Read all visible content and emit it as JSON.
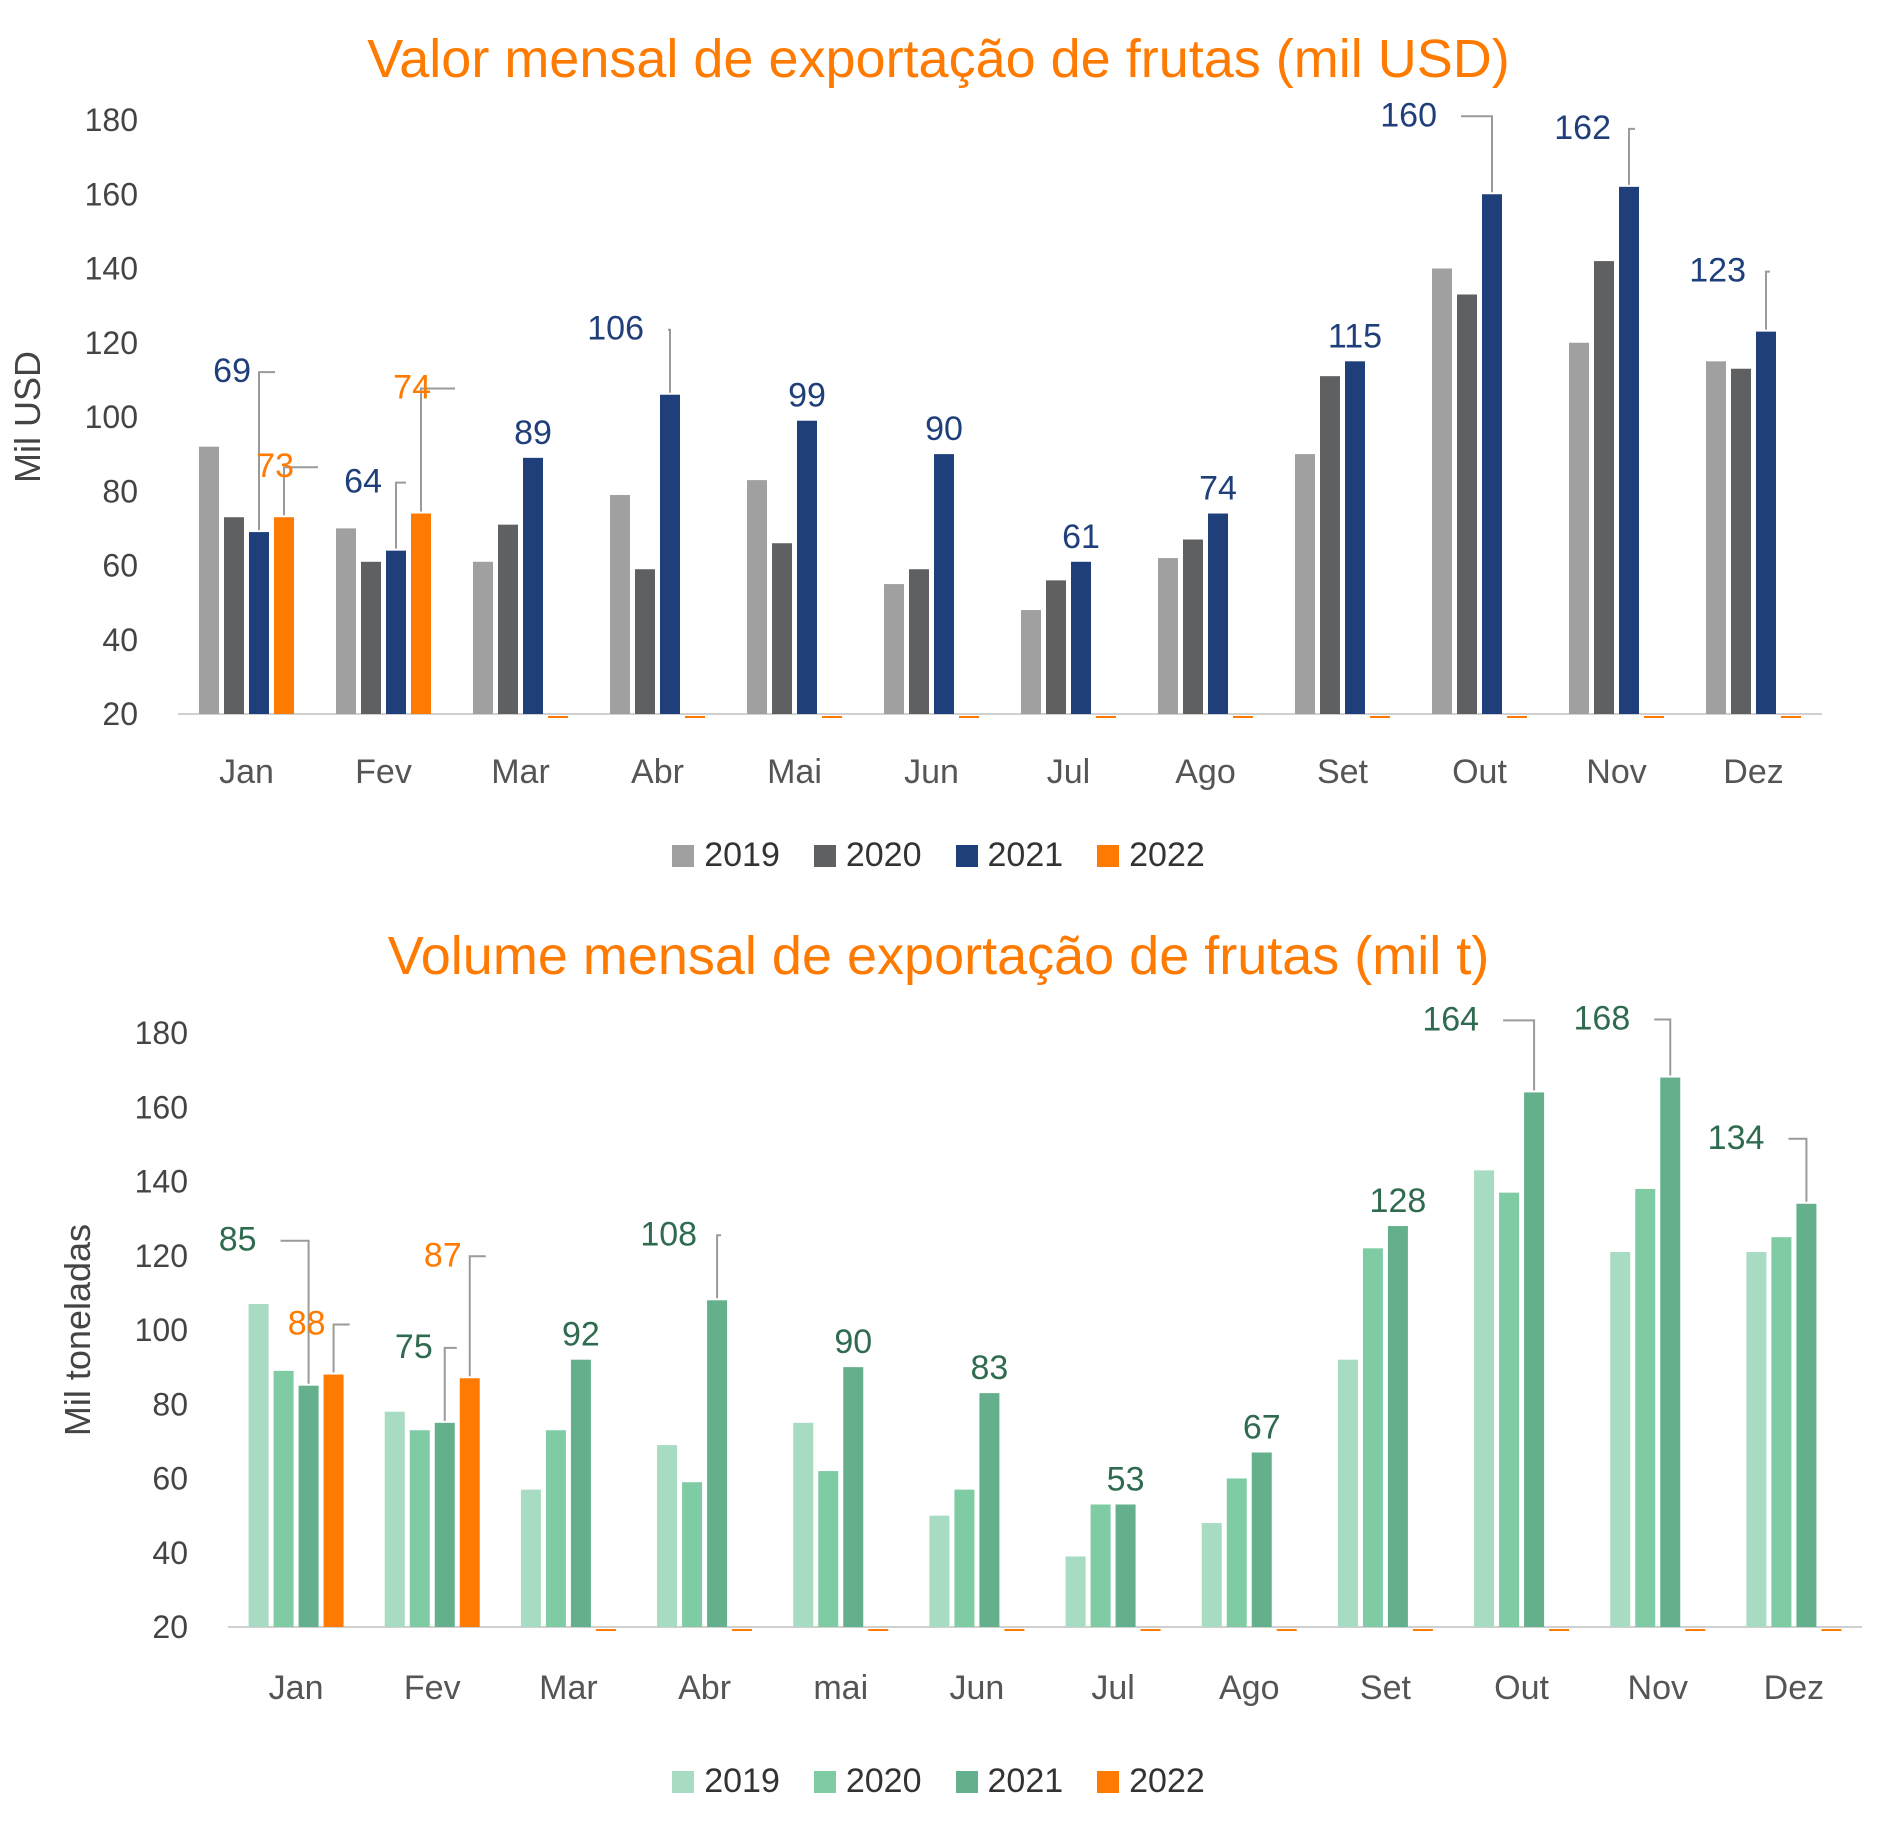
{
  "chart_data": [
    {
      "type": "bar",
      "title": "Valor mensal de exportação de frutas (mil USD)",
      "ylabel": "Mil USD",
      "xlabel": "",
      "ylim": [
        20,
        180
      ],
      "yticks": [
        20,
        40,
        60,
        80,
        100,
        120,
        140,
        160,
        180
      ],
      "categories": [
        "Jan",
        "Fev",
        "Mar",
        "Abr",
        "Mai",
        "Jun",
        "Jul",
        "Ago",
        "Set",
        "Out",
        "Nov",
        "Dez"
      ],
      "series": [
        {
          "name": "2019",
          "color": "#a0a0a0",
          "values": [
            92,
            70,
            61,
            79,
            83,
            55,
            48,
            62,
            90,
            140,
            120,
            115
          ]
        },
        {
          "name": "2020",
          "color": "#5f6062",
          "values": [
            73,
            61,
            71,
            59,
            66,
            59,
            56,
            67,
            111,
            133,
            142,
            113
          ]
        },
        {
          "name": "2021",
          "color": "#1f3f7a",
          "values": [
            69,
            64,
            89,
            106,
            99,
            90,
            61,
            74,
            115,
            160,
            162,
            123
          ]
        },
        {
          "name": "2022",
          "color": "#ff7a00",
          "values": [
            73,
            74,
            null,
            null,
            null,
            null,
            null,
            null,
            null,
            null,
            null,
            null
          ]
        }
      ],
      "data_labels": [
        {
          "text": "69",
          "series": 2,
          "category": 0
        },
        {
          "text": "73",
          "series": 3,
          "category": 0
        },
        {
          "text": "64",
          "series": 2,
          "category": 1
        },
        {
          "text": "74",
          "series": 3,
          "category": 1
        },
        {
          "text": "89",
          "series": 2,
          "category": 2
        },
        {
          "text": "106",
          "series": 2,
          "category": 3
        },
        {
          "text": "99",
          "series": 2,
          "category": 4
        },
        {
          "text": "90",
          "series": 2,
          "category": 5
        },
        {
          "text": "61",
          "series": 2,
          "category": 6
        },
        {
          "text": "74",
          "series": 2,
          "category": 7
        },
        {
          "text": "115",
          "series": 2,
          "category": 8
        },
        {
          "text": "160",
          "series": 2,
          "category": 9
        },
        {
          "text": "162",
          "series": 2,
          "category": 10
        },
        {
          "text": "123",
          "series": 2,
          "category": 11
        }
      ],
      "legend": "bottom"
    },
    {
      "type": "bar",
      "title": "Volume mensal de exportação de frutas (mil t)",
      "ylabel": "Mil toneladas",
      "xlabel": "",
      "ylim": [
        20,
        180
      ],
      "yticks": [
        20,
        40,
        60,
        80,
        100,
        120,
        140,
        160,
        180
      ],
      "categories": [
        "Jan",
        "Fev",
        "Mar",
        "Abr",
        "mai",
        "Jun",
        "Jul",
        "Ago",
        "Set",
        "Out",
        "Nov",
        "Dez"
      ],
      "series": [
        {
          "name": "2019",
          "color": "#a8dcc2",
          "values": [
            107,
            78,
            57,
            69,
            75,
            50,
            39,
            48,
            92,
            143,
            121,
            121
          ]
        },
        {
          "name": "2020",
          "color": "#7ecba4",
          "values": [
            89,
            73,
            73,
            59,
            62,
            57,
            53,
            60,
            122,
            137,
            138,
            125
          ]
        },
        {
          "name": "2021",
          "color": "#65b08c",
          "values": [
            85,
            75,
            92,
            108,
            90,
            83,
            53,
            67,
            128,
            164,
            168,
            134
          ]
        },
        {
          "name": "2022",
          "color": "#ff7a00",
          "values": [
            88,
            87,
            null,
            null,
            null,
            null,
            null,
            null,
            null,
            null,
            null,
            null
          ]
        }
      ],
      "data_labels": [
        {
          "text": "85",
          "series": 2,
          "category": 0
        },
        {
          "text": "88",
          "series": 3,
          "category": 0
        },
        {
          "text": "75",
          "series": 2,
          "category": 1
        },
        {
          "text": "87",
          "series": 3,
          "category": 1
        },
        {
          "text": "92",
          "series": 2,
          "category": 2
        },
        {
          "text": "108",
          "series": 2,
          "category": 3
        },
        {
          "text": "90",
          "series": 2,
          "category": 4
        },
        {
          "text": "83",
          "series": 2,
          "category": 5
        },
        {
          "text": "53",
          "series": 2,
          "category": 6
        },
        {
          "text": "67",
          "series": 2,
          "category": 7
        },
        {
          "text": "128",
          "series": 2,
          "category": 8
        },
        {
          "text": "164",
          "series": 2,
          "category": 9
        },
        {
          "text": "168",
          "series": 2,
          "category": 10
        },
        {
          "text": "134",
          "series": 2,
          "category": 11
        }
      ],
      "legend": "bottom"
    }
  ],
  "colors": {
    "title": "#ff7a00",
    "label_2021_value": "#1f3f7a",
    "label_2021_volume": "#2f6b4f",
    "label_2022": "#ff7a00",
    "axis": "#d0d0d0",
    "leader": "#9a9a9a"
  }
}
